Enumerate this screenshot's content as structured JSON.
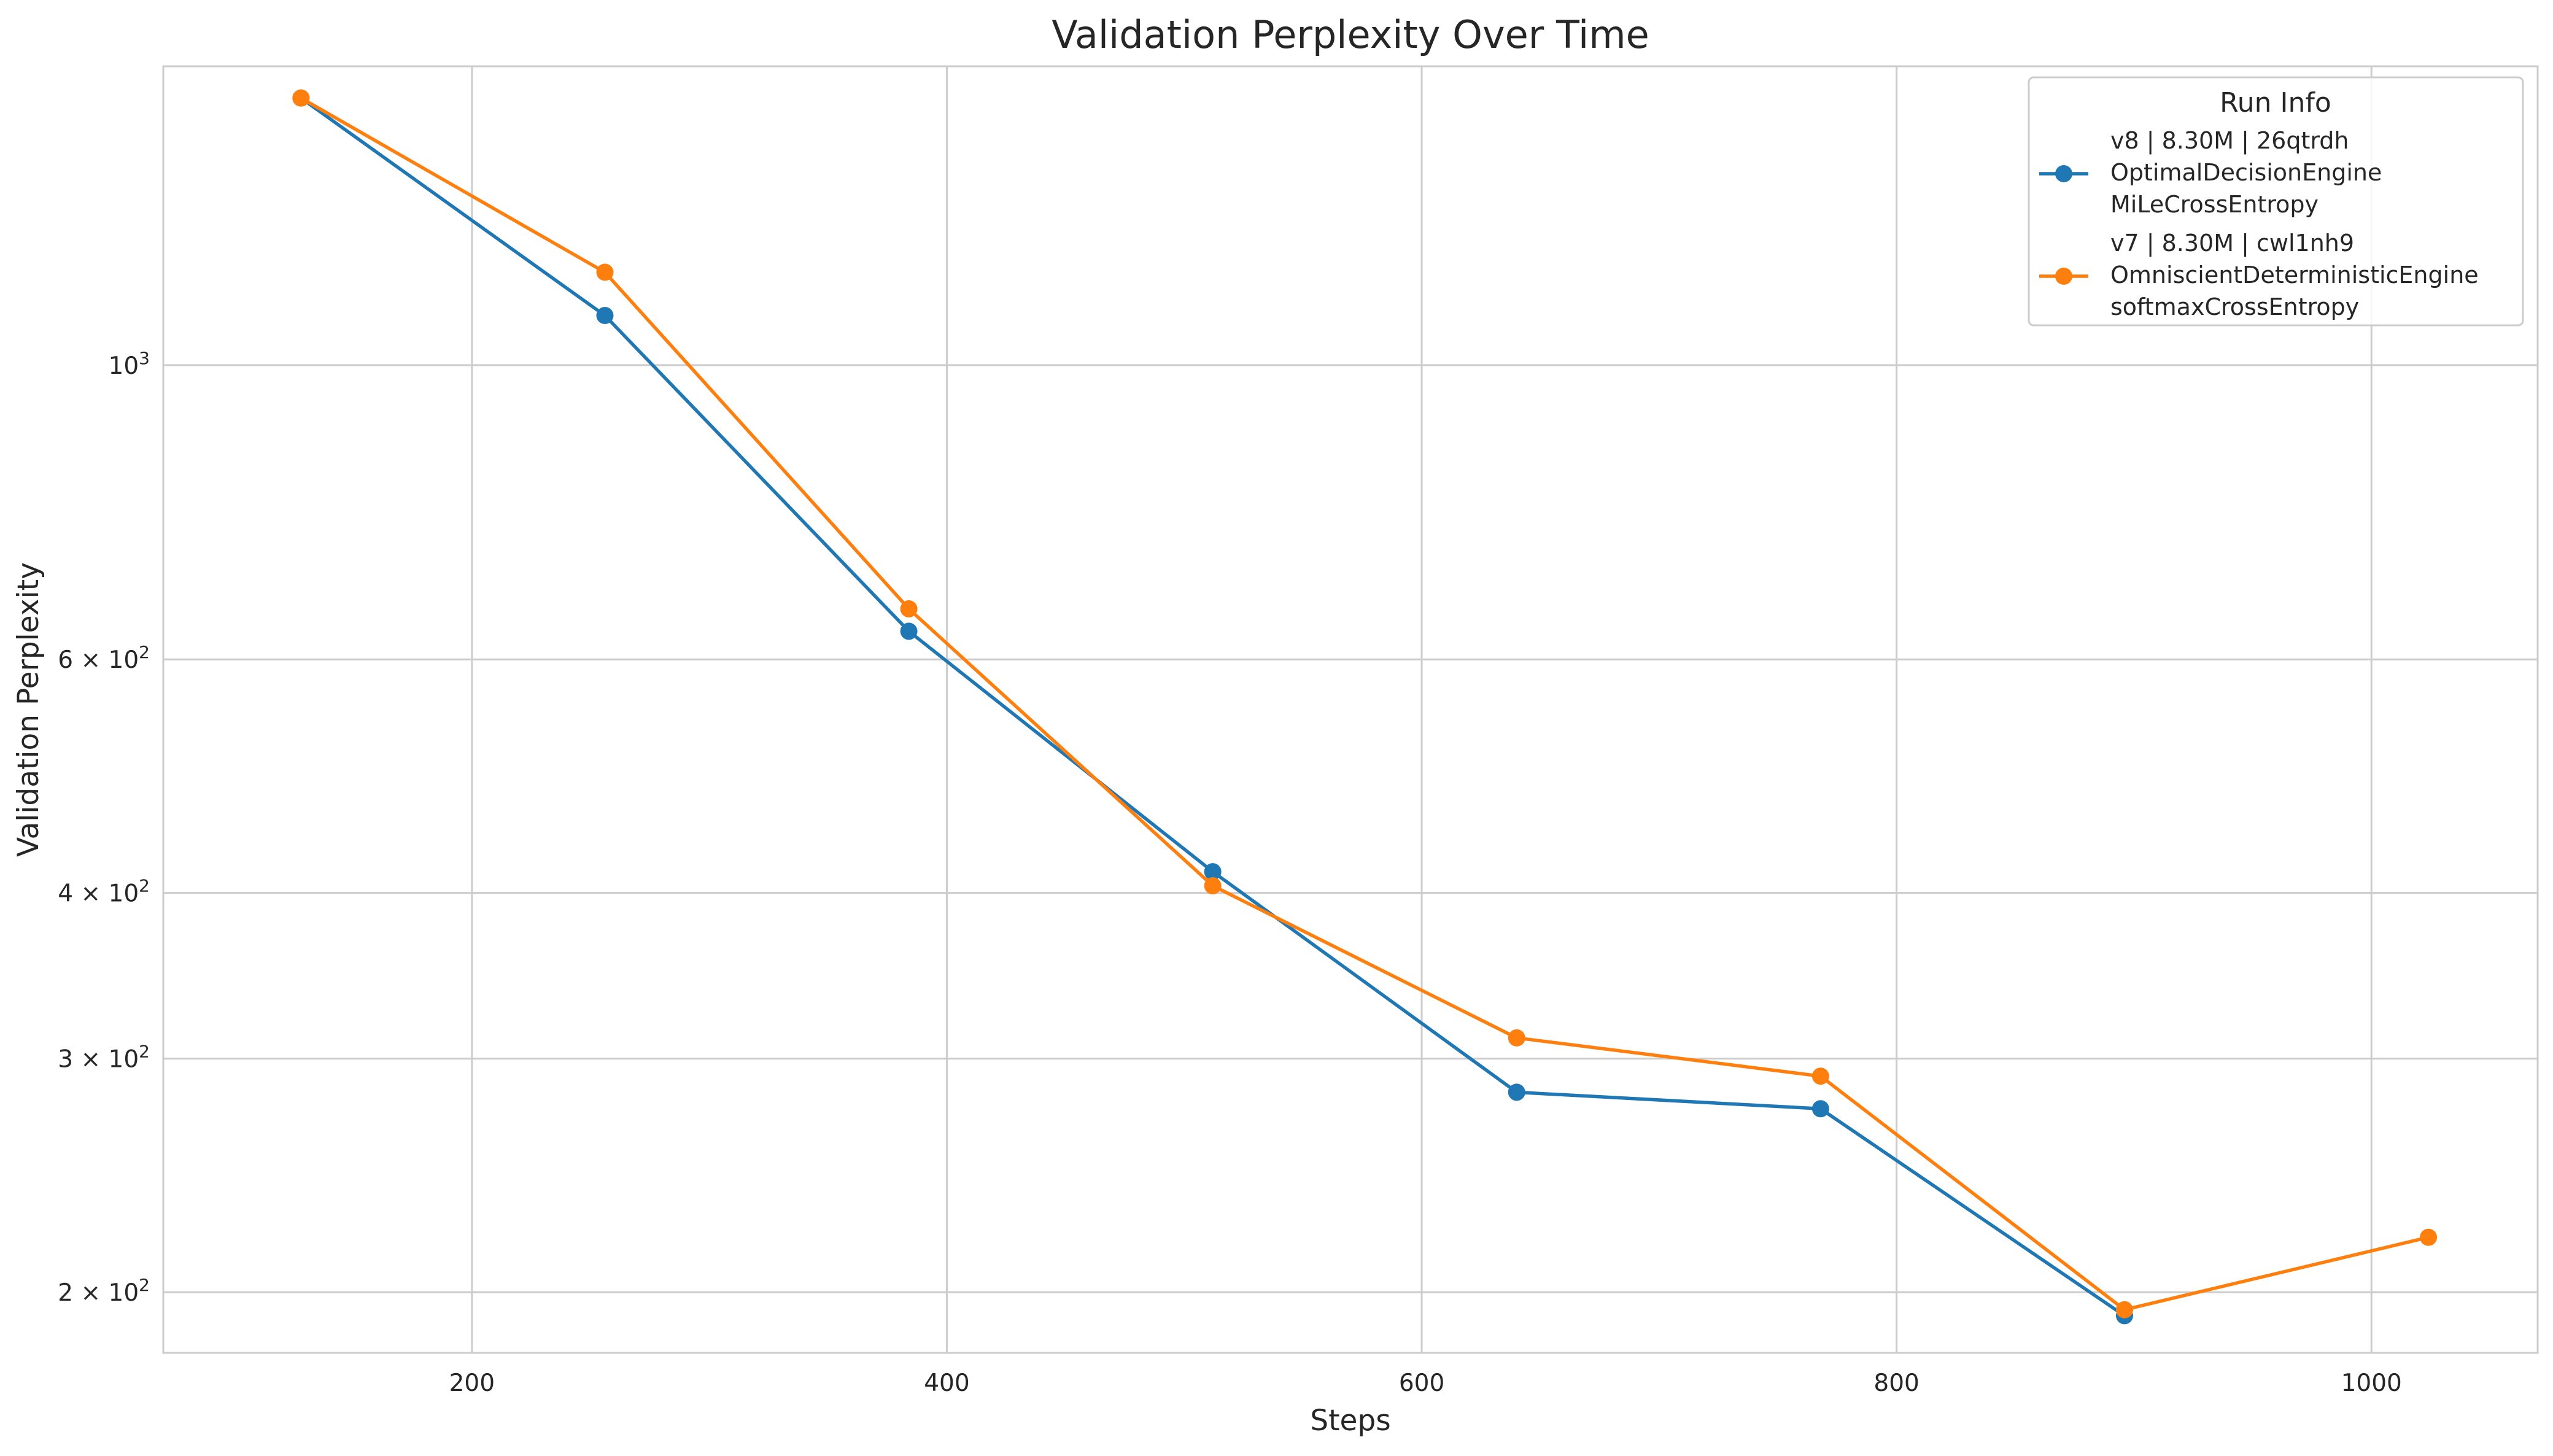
{
  "chart_data": {
    "type": "line",
    "title": "Validation Perplexity Over Time",
    "xlabel": "Steps",
    "ylabel": "Validation Perplexity",
    "xlim": [
      70,
      1070
    ],
    "ylim": [
      180,
      1680
    ],
    "yscale": "log",
    "grid": true,
    "legend_position": "top-right",
    "legend_title": "Run Info",
    "x_ticks": [
      {
        "value": 200,
        "label": "200"
      },
      {
        "value": 400,
        "label": "400"
      },
      {
        "value": 600,
        "label": "600"
      },
      {
        "value": 800,
        "label": "800"
      },
      {
        "value": 1000,
        "label": "1000"
      }
    ],
    "y_ticks": [
      {
        "value": 1000,
        "base": "10",
        "exp": "3",
        "coef": ""
      },
      {
        "value": 600,
        "base": "10",
        "exp": "2",
        "coef": "6 × "
      },
      {
        "value": 400,
        "base": "10",
        "exp": "2",
        "coef": "4 × "
      },
      {
        "value": 300,
        "base": "10",
        "exp": "2",
        "coef": "3 × "
      },
      {
        "value": 200,
        "base": "10",
        "exp": "2",
        "coef": "2 × "
      }
    ],
    "series": [
      {
        "name_lines": [
          "v8 | 8.30M | 26qtrdh",
          "OptimalDecisionEngine",
          "MiLeCrossEntropy"
        ],
        "color": "#1f77b4",
        "x": [
          128,
          256,
          384,
          512,
          640,
          768,
          896
        ],
        "y": [
          1590,
          1090,
          630,
          415,
          283,
          275,
          192
        ]
      },
      {
        "name_lines": [
          "v7 | 8.30M | cwl1nh9",
          "OmniscientDeterministicEngine",
          "softmaxCrossEntropy"
        ],
        "color": "#ff7f0e",
        "x": [
          128,
          256,
          384,
          512,
          640,
          768,
          896,
          1024
        ],
        "y": [
          1590,
          1175,
          655,
          405,
          311,
          291,
          194,
          220
        ]
      }
    ]
  }
}
